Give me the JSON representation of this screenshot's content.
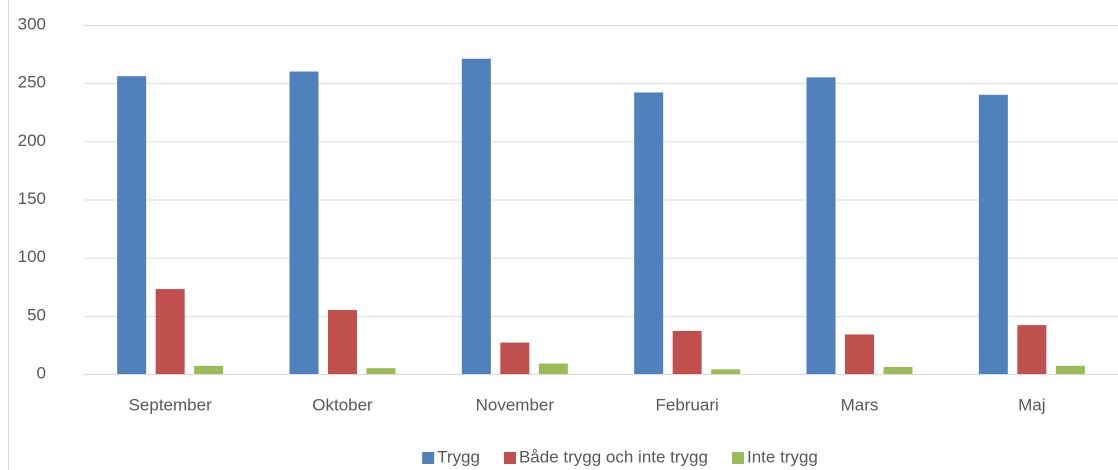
{
  "chart_data": {
    "type": "bar",
    "categories": [
      "September",
      "Oktober",
      "November",
      "Februari",
      "Mars",
      "Maj"
    ],
    "series": [
      {
        "name": "Trygg",
        "color": "#4f81bd",
        "values": [
          256,
          260,
          271,
          242,
          255,
          240
        ]
      },
      {
        "name": "Både trygg och inte trygg",
        "color": "#c0504d",
        "values": [
          73,
          55,
          27,
          37,
          34,
          42
        ]
      },
      {
        "name": "Inte trygg",
        "color": "#9bbb59",
        "values": [
          7,
          5,
          9,
          4,
          6,
          7
        ]
      }
    ],
    "ylim": [
      0,
      300
    ],
    "yticks": [
      0,
      50,
      100,
      150,
      200,
      250,
      300
    ],
    "grid": true,
    "legend": "bottom"
  }
}
